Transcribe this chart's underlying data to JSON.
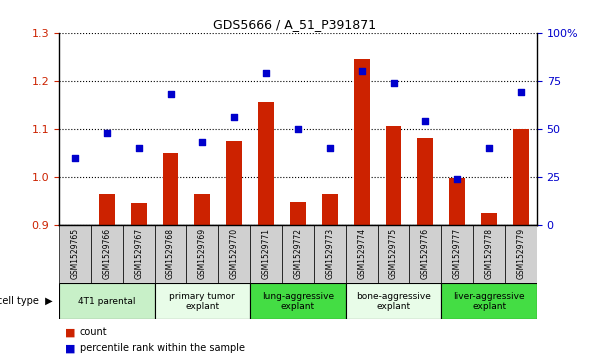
{
  "title": "GDS5666 / A_51_P391871",
  "samples": [
    "GSM1529765",
    "GSM1529766",
    "GSM1529767",
    "GSM1529768",
    "GSM1529769",
    "GSM1529770",
    "GSM1529771",
    "GSM1529772",
    "GSM1529773",
    "GSM1529774",
    "GSM1529775",
    "GSM1529776",
    "GSM1529777",
    "GSM1529778",
    "GSM1529779"
  ],
  "bar_values": [
    0.9,
    0.965,
    0.945,
    1.05,
    0.965,
    1.075,
    1.155,
    0.948,
    0.965,
    1.245,
    1.105,
    1.08,
    0.998,
    0.925,
    1.1
  ],
  "dot_values": [
    35,
    48,
    40,
    68,
    43,
    56,
    79,
    50,
    40,
    80,
    74,
    54,
    24,
    40,
    69
  ],
  "ylim_left": [
    0.9,
    1.3
  ],
  "ylim_right": [
    0,
    100
  ],
  "yticks_left": [
    0.9,
    1.0,
    1.1,
    1.2,
    1.3
  ],
  "yticks_right": [
    0,
    25,
    50,
    75,
    100
  ],
  "ytick_labels_right": [
    "0",
    "25",
    "50",
    "75",
    "100%"
  ],
  "bar_color": "#CC2200",
  "dot_color": "#0000CC",
  "bar_baseline": 0.9,
  "cell_types": [
    {
      "label": "4T1 parental",
      "start": 0,
      "end": 3,
      "color": "#c8f0c8"
    },
    {
      "label": "primary tumor\nexplant",
      "start": 3,
      "end": 6,
      "color": "#e8fce8"
    },
    {
      "label": "lung-aggressive\nexplant",
      "start": 6,
      "end": 9,
      "color": "#44dd44"
    },
    {
      "label": "bone-aggressive\nexplant",
      "start": 9,
      "end": 12,
      "color": "#e8fce8"
    },
    {
      "label": "liver-aggressive\nexplant",
      "start": 12,
      "end": 15,
      "color": "#44dd44"
    }
  ],
  "xtick_bg_color": "#d0d0d0",
  "legend_bar_label": "count",
  "legend_dot_label": "percentile rank within the sample",
  "background_color": "#ffffff",
  "plot_bg_color": "#ffffff",
  "tick_color_left": "#CC2200",
  "tick_color_right": "#0000CC"
}
